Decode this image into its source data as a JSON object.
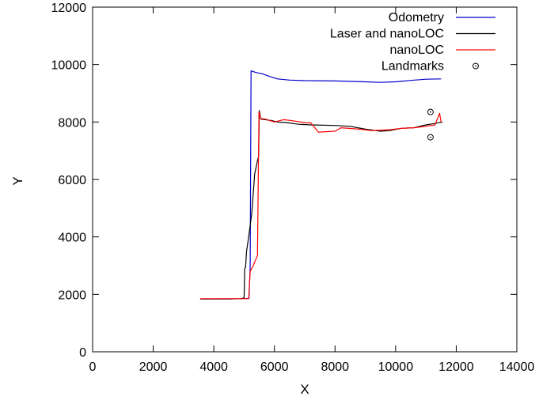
{
  "chart_data": {
    "type": "line",
    "xlabel": "X",
    "ylabel": "Y",
    "xlim": [
      0,
      14000
    ],
    "ylim": [
      0,
      12000
    ],
    "x_ticks": [
      0,
      2000,
      4000,
      6000,
      8000,
      10000,
      12000,
      14000
    ],
    "y_ticks": [
      0,
      2000,
      4000,
      6000,
      8000,
      10000,
      12000
    ],
    "x_tick_labels": [
      "0",
      "2000",
      "4000",
      "6000",
      "8000",
      "10000",
      "12000",
      "14000"
    ],
    "y_tick_labels": [
      "0",
      "2000",
      "4000",
      "6000",
      "8000",
      "10000",
      "12000"
    ],
    "grid": false,
    "legend_position": "top-right",
    "series": [
      {
        "name": "Odometry",
        "color": "#0000cc",
        "points": [
          [
            3550,
            1840
          ],
          [
            4000,
            1840
          ],
          [
            4500,
            1845
          ],
          [
            5000,
            1850
          ],
          [
            5160,
            1860
          ],
          [
            5200,
            3000
          ],
          [
            5230,
            9780
          ],
          [
            5400,
            9720
          ],
          [
            5600,
            9680
          ],
          [
            5800,
            9600
          ],
          [
            6100,
            9500
          ],
          [
            6500,
            9460
          ],
          [
            7000,
            9440
          ],
          [
            8000,
            9430
          ],
          [
            9000,
            9400
          ],
          [
            9500,
            9380
          ],
          [
            10000,
            9400
          ],
          [
            10500,
            9450
          ],
          [
            11000,
            9490
          ],
          [
            11500,
            9500
          ]
        ]
      },
      {
        "name": "Laser and nanoLOC",
        "color": "#000000",
        "points": [
          [
            3550,
            1840
          ],
          [
            4000,
            1840
          ],
          [
            4500,
            1840
          ],
          [
            4900,
            1850
          ],
          [
            5000,
            1880
          ],
          [
            5020,
            2900
          ],
          [
            5050,
            2950
          ],
          [
            5080,
            3500
          ],
          [
            5150,
            4000
          ],
          [
            5250,
            4800
          ],
          [
            5350,
            6200
          ],
          [
            5450,
            6700
          ],
          [
            5480,
            6800
          ],
          [
            5500,
            8400
          ],
          [
            5550,
            8100
          ],
          [
            5700,
            8080
          ],
          [
            5900,
            8050
          ],
          [
            6100,
            8000
          ],
          [
            6400,
            7980
          ],
          [
            6800,
            7920
          ],
          [
            7200,
            7900
          ],
          [
            8000,
            7880
          ],
          [
            8500,
            7850
          ],
          [
            9000,
            7750
          ],
          [
            9500,
            7680
          ],
          [
            9800,
            7700
          ],
          [
            10200,
            7780
          ],
          [
            10600,
            7800
          ],
          [
            11000,
            7900
          ],
          [
            11300,
            7950
          ],
          [
            11550,
            8000
          ]
        ]
      },
      {
        "name": "nanoLOC",
        "color": "#ff0000",
        "points": [
          [
            3550,
            1850
          ],
          [
            4000,
            1850
          ],
          [
            4500,
            1850
          ],
          [
            4900,
            1850
          ],
          [
            5150,
            1850
          ],
          [
            5200,
            2800
          ],
          [
            5300,
            3000
          ],
          [
            5440,
            3350
          ],
          [
            5490,
            8350
          ],
          [
            5550,
            8120
          ],
          [
            5700,
            8100
          ],
          [
            6000,
            8000
          ],
          [
            6300,
            8080
          ],
          [
            6500,
            8060
          ],
          [
            7000,
            7980
          ],
          [
            7200,
            7970
          ],
          [
            7450,
            7650
          ],
          [
            8000,
            7680
          ],
          [
            8200,
            7800
          ],
          [
            8800,
            7750
          ],
          [
            9200,
            7700
          ],
          [
            9800,
            7730
          ],
          [
            10200,
            7780
          ],
          [
            10600,
            7800
          ],
          [
            11000,
            7850
          ],
          [
            11300,
            7900
          ],
          [
            11450,
            8300
          ],
          [
            11500,
            8000
          ]
        ]
      },
      {
        "name": "Landmarks",
        "color": "#000000",
        "marker": "circle-dot",
        "points": [
          [
            11150,
            8350
          ],
          [
            11150,
            7470
          ]
        ]
      }
    ]
  }
}
